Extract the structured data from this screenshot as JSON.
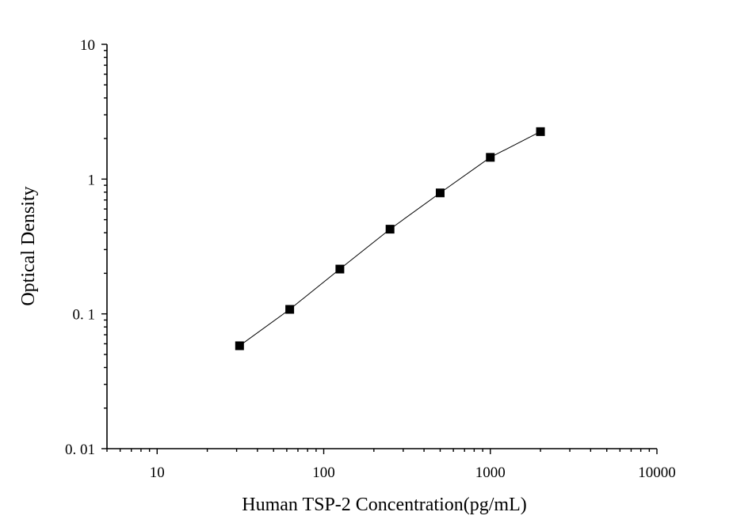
{
  "chart_data": {
    "type": "scatter",
    "xlabel": "Human TSP-2 Concentration(pg/mL)",
    "ylabel": "Optical Density",
    "x_scale": "log",
    "y_scale": "log",
    "xlim": [
      5,
      10000
    ],
    "ylim": [
      0.01,
      10
    ],
    "x_tick_labels": [
      {
        "value": 10,
        "label": "10"
      },
      {
        "value": 100,
        "label": "100"
      },
      {
        "value": 1000,
        "label": "1000"
      },
      {
        "value": 10000,
        "label": "10000"
      }
    ],
    "y_tick_labels": [
      {
        "value": 10,
        "label": "10"
      },
      {
        "value": 1,
        "label": "1"
      },
      {
        "value": 0.1,
        "label": "0. 1"
      },
      {
        "value": 0.01,
        "label": "0. 01"
      }
    ],
    "grid": false,
    "legend": "none",
    "marker": "square",
    "connected": true,
    "color": "#000000",
    "series": [
      {
        "x": [
          31.25,
          62.5,
          125,
          250,
          500,
          1000,
          2000
        ],
        "y": [
          0.058,
          0.108,
          0.215,
          0.425,
          0.79,
          1.45,
          2.25
        ]
      }
    ]
  }
}
